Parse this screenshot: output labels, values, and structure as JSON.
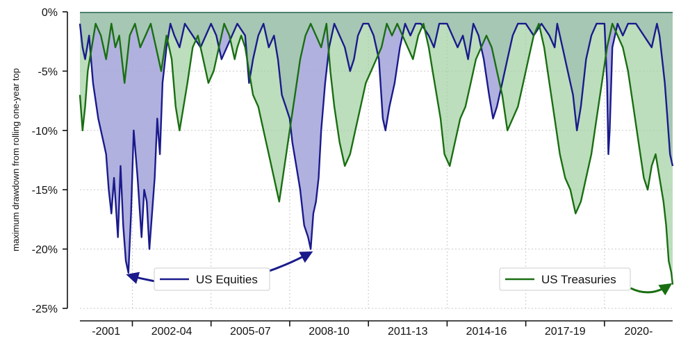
{
  "chart_data": {
    "type": "area",
    "title": "",
    "xlabel": "",
    "ylabel": "maximum drawdown from rolling one-year top",
    "ylim": [
      -25,
      0
    ],
    "yticks": [
      0,
      -5,
      -10,
      -15,
      -20,
      -25
    ],
    "ytick_labels": [
      "0%",
      "-5%",
      "-10%",
      "-15%",
      "-20%",
      "-25%"
    ],
    "xlim": [
      2000,
      2022.6
    ],
    "x_periods": [
      {
        "label": "-2001",
        "start": 2000.0,
        "end": 2002.0
      },
      {
        "label": "2002-04",
        "start": 2002.0,
        "end": 2005.0
      },
      {
        "label": "2005-07",
        "start": 2005.0,
        "end": 2008.0
      },
      {
        "label": "2008-10",
        "start": 2008.0,
        "end": 2011.0
      },
      {
        "label": "2011-13",
        "start": 2011.0,
        "end": 2014.0
      },
      {
        "label": "2014-16",
        "start": 2014.0,
        "end": 2017.0
      },
      {
        "label": "2017-19",
        "start": 2017.0,
        "end": 2020.0
      },
      {
        "label": "2020-",
        "start": 2020.0,
        "end": 2022.6
      }
    ],
    "grid": true,
    "legend": [
      "US Equities",
      "US Treasuries"
    ],
    "series": [
      {
        "name": "US Equities",
        "color": "#1a1a8c",
        "fill": "#a9a9dc",
        "x": [
          2000.0,
          2000.1,
          2000.2,
          2000.35,
          2000.5,
          2000.7,
          2000.9,
          2001.0,
          2001.1,
          2001.2,
          2001.3,
          2001.45,
          2001.55,
          2001.65,
          2001.75,
          2001.85,
          2001.95,
          2002.05,
          2002.2,
          2002.35,
          2002.45,
          2002.55,
          2002.65,
          2002.75,
          2002.85,
          2002.95,
          2003.05,
          2003.15,
          2003.3,
          2003.45,
          2003.6,
          2003.8,
          2004.0,
          2004.3,
          2004.6,
          2005.0,
          2005.2,
          2005.4,
          2005.6,
          2005.8,
          2006.0,
          2006.3,
          2006.45,
          2006.6,
          2006.8,
          2007.0,
          2007.2,
          2007.4,
          2007.55,
          2007.7,
          2007.85,
          2008.0,
          2008.1,
          2008.25,
          2008.4,
          2008.55,
          2008.7,
          2008.8,
          2008.9,
          2009.0,
          2009.1,
          2009.2,
          2009.35,
          2009.5,
          2009.7,
          2009.9,
          2010.1,
          2010.3,
          2010.45,
          2010.6,
          2010.8,
          2011.0,
          2011.2,
          2011.4,
          2011.55,
          2011.65,
          2011.8,
          2012.0,
          2012.2,
          2012.4,
          2012.6,
          2012.8,
          2013.0,
          2013.3,
          2013.5,
          2013.7,
          2014.0,
          2014.2,
          2014.4,
          2014.6,
          2014.8,
          2015.0,
          2015.2,
          2015.4,
          2015.6,
          2015.75,
          2015.9,
          2016.1,
          2016.3,
          2016.5,
          2016.7,
          2017.0,
          2017.3,
          2017.6,
          2017.9,
          2018.1,
          2018.2,
          2018.4,
          2018.6,
          2018.8,
          2018.95,
          2019.1,
          2019.3,
          2019.5,
          2019.7,
          2020.0,
          2020.1,
          2020.15,
          2020.2,
          2020.3,
          2020.5,
          2020.7,
          2020.9,
          2021.2,
          2021.5,
          2021.8,
          2022.0,
          2022.1,
          2022.2,
          2022.3,
          2022.4,
          2022.5,
          2022.6
        ],
        "values": [
          -1,
          -3,
          -4,
          -2,
          -6,
          -9,
          -11,
          -12,
          -15,
          -17,
          -14,
          -19,
          -13,
          -18,
          -21,
          -22,
          -17,
          -10,
          -14,
          -19,
          -15,
          -16,
          -20,
          -17,
          -14,
          -9,
          -12,
          -6,
          -3,
          -1,
          -2,
          -3,
          -1,
          -2,
          -3,
          -1,
          -2,
          -4,
          -3,
          -2,
          -1,
          -2,
          -6,
          -4,
          -2,
          -1,
          -3,
          -2,
          -4,
          -7,
          -8,
          -9,
          -11,
          -13,
          -15,
          -18,
          -19,
          -20,
          -17,
          -16,
          -14,
          -10,
          -6,
          -3,
          -1,
          -2,
          -3,
          -5,
          -4,
          -2,
          -1,
          -1,
          -2,
          -4,
          -9,
          -10,
          -8,
          -6,
          -3,
          -1,
          -2,
          -1,
          -1,
          -2,
          -3,
          -1,
          -1,
          -2,
          -3,
          -2,
          -4,
          -1,
          -2,
          -4,
          -7,
          -9,
          -8,
          -6,
          -4,
          -2,
          -1,
          -1,
          -2,
          -1,
          -2,
          -3,
          -1,
          -3,
          -5,
          -7,
          -10,
          -8,
          -4,
          -2,
          -1,
          -1,
          -6,
          -12,
          -10,
          -3,
          -1,
          -2,
          -1,
          -1,
          -2,
          -3,
          -1,
          -2,
          -4,
          -6,
          -9,
          -12,
          -13
        ]
      },
      {
        "name": "US Treasuries",
        "color": "#1a6e12",
        "fill": "#9fd09f",
        "x": [
          2000.0,
          2000.1,
          2000.2,
          2000.3,
          2000.45,
          2000.6,
          2000.8,
          2001.0,
          2001.2,
          2001.35,
          2001.5,
          2001.7,
          2001.9,
          2002.1,
          2002.3,
          2002.5,
          2002.7,
          2002.9,
          2003.1,
          2003.3,
          2003.5,
          2003.65,
          2003.8,
          2003.95,
          2004.1,
          2004.3,
          2004.5,
          2004.7,
          2004.9,
          2005.1,
          2005.3,
          2005.5,
          2005.7,
          2005.9,
          2006.0,
          2006.15,
          2006.3,
          2006.45,
          2006.6,
          2006.8,
          2007.0,
          2007.2,
          2007.4,
          2007.6,
          2007.8,
          2008.0,
          2008.2,
          2008.4,
          2008.6,
          2008.8,
          2009.0,
          2009.2,
          2009.4,
          2009.55,
          2009.7,
          2009.9,
          2010.1,
          2010.3,
          2010.5,
          2010.7,
          2010.9,
          2011.1,
          2011.3,
          2011.5,
          2011.7,
          2011.9,
          2012.1,
          2012.3,
          2012.5,
          2012.7,
          2012.9,
          2013.1,
          2013.3,
          2013.45,
          2013.6,
          2013.75,
          2013.9,
          2014.1,
          2014.3,
          2014.5,
          2014.7,
          2014.9,
          2015.1,
          2015.3,
          2015.5,
          2015.7,
          2015.9,
          2016.1,
          2016.3,
          2016.5,
          2016.7,
          2016.9,
          2017.1,
          2017.3,
          2017.5,
          2017.7,
          2017.9,
          2018.1,
          2018.3,
          2018.5,
          2018.7,
          2018.9,
          2019.1,
          2019.3,
          2019.5,
          2019.7,
          2019.9,
          2020.1,
          2020.3,
          2020.5,
          2020.7,
          2020.9,
          2021.1,
          2021.3,
          2021.5,
          2021.65,
          2021.8,
          2021.95,
          2022.1,
          2022.25,
          2022.35,
          2022.45,
          2022.55,
          2022.6
        ],
        "values": [
          -7,
          -10,
          -8,
          -5,
          -3,
          -1,
          -2,
          -4,
          -1,
          -3,
          -2,
          -6,
          -2,
          -1,
          -3,
          -2,
          -1,
          -3,
          -5,
          -2,
          -4,
          -8,
          -10,
          -8,
          -6,
          -3,
          -2,
          -4,
          -6,
          -5,
          -3,
          -1,
          -2,
          -4,
          -3,
          -2,
          -3,
          -5,
          -7,
          -8,
          -10,
          -12,
          -14,
          -16,
          -13,
          -10,
          -7,
          -4,
          -2,
          -1,
          -2,
          -3,
          -1,
          -5,
          -8,
          -11,
          -13,
          -12,
          -10,
          -8,
          -6,
          -5,
          -4,
          -3,
          -1,
          -2,
          -1,
          -2,
          -3,
          -4,
          -2,
          -1,
          -3,
          -5,
          -7,
          -9,
          -12,
          -13,
          -11,
          -9,
          -8,
          -6,
          -4,
          -3,
          -2,
          -3,
          -5,
          -7,
          -10,
          -9,
          -8,
          -6,
          -4,
          -2,
          -1,
          -3,
          -6,
          -9,
          -12,
          -14,
          -15,
          -17,
          -16,
          -14,
          -12,
          -9,
          -6,
          -3,
          -1,
          -2,
          -3,
          -5,
          -8,
          -11,
          -14,
          -15,
          -13,
          -12,
          -14,
          -16,
          -18,
          -21,
          -22,
          -23
        ]
      }
    ],
    "annotations": [
      {
        "type": "double-arrow",
        "from": [
          2001.85,
          -22.2
        ],
        "to": [
          2008.8,
          -20.3
        ],
        "color": "#1a1a8c"
      },
      {
        "type": "arrow",
        "from": [
          2021.0,
          -23.3
        ],
        "to": [
          2022.5,
          -23.0
        ],
        "color": "#1a6e12"
      }
    ]
  }
}
